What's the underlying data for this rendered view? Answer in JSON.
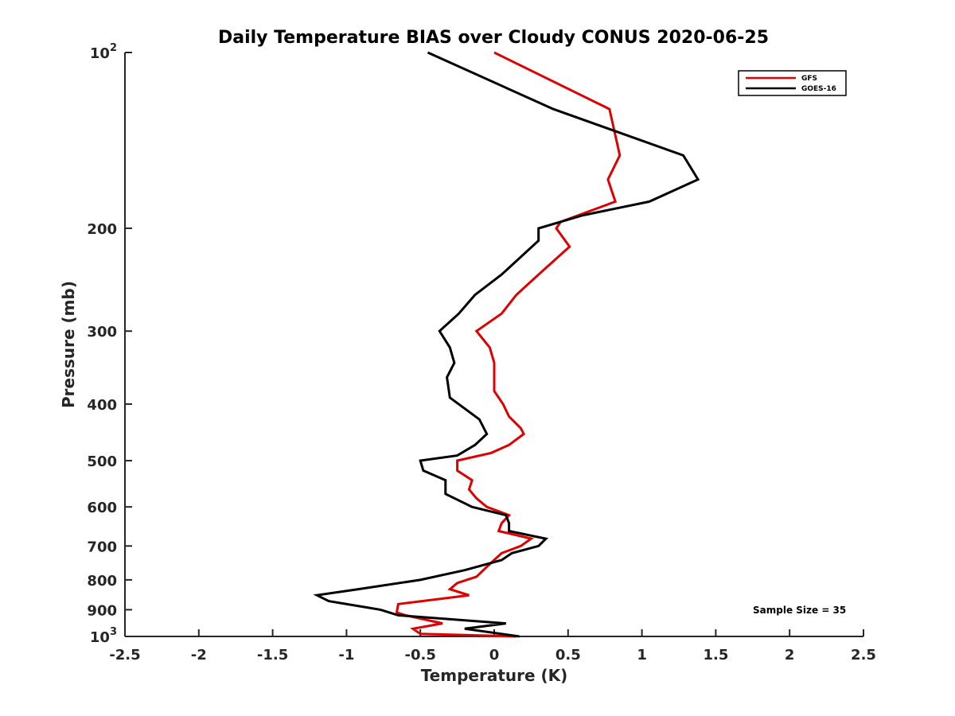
{
  "chart_data": {
    "type": "line",
    "title": "Daily Temperature BIAS over Cloudy CONUS 2020-06-25",
    "xlabel": "Temperature (K)",
    "ylabel": "Pressure (mb)",
    "xlim": [
      -2.5,
      2.5
    ],
    "ylim": [
      100,
      1000
    ],
    "y_scale": "log",
    "y_reversed": true,
    "x_ticks": [
      -2.5,
      -2,
      -1.5,
      -1,
      -0.5,
      0,
      0.5,
      1,
      1.5,
      2,
      2.5
    ],
    "x_tick_labels": [
      "-2.5",
      "-2",
      "-1.5",
      "-1",
      "-0.5",
      "0",
      "0.5",
      "1",
      "1.5",
      "2",
      "2.5"
    ],
    "y_ticks": [
      100,
      200,
      300,
      400,
      500,
      600,
      700,
      800,
      900,
      1000
    ],
    "y_tick_labels": [
      {
        "base": "10",
        "exp": "2"
      },
      {
        "base": "200",
        "exp": ""
      },
      {
        "base": "300",
        "exp": ""
      },
      {
        "base": "400",
        "exp": ""
      },
      {
        "base": "500",
        "exp": ""
      },
      {
        "base": "600",
        "exp": ""
      },
      {
        "base": "700",
        "exp": ""
      },
      {
        "base": "800",
        "exp": ""
      },
      {
        "base": "900",
        "exp": ""
      },
      {
        "base": "10",
        "exp": "3"
      }
    ],
    "grid": false,
    "legend_position": "top-right",
    "annotation": "Sample Size = 35",
    "series": [
      {
        "name": "GFS",
        "color": "#e00000",
        "points": [
          [
            0.0,
            100
          ],
          [
            0.78,
            125
          ],
          [
            0.85,
            150
          ],
          [
            0.77,
            165
          ],
          [
            0.82,
            180
          ],
          [
            0.45,
            195
          ],
          [
            0.42,
            200
          ],
          [
            0.51,
            215
          ],
          [
            0.3,
            240
          ],
          [
            0.15,
            260
          ],
          [
            0.05,
            280
          ],
          [
            -0.12,
            300
          ],
          [
            -0.03,
            320
          ],
          [
            0.0,
            340
          ],
          [
            0.0,
            360
          ],
          [
            0.0,
            380
          ],
          [
            0.06,
            400
          ],
          [
            0.1,
            420
          ],
          [
            0.18,
            440
          ],
          [
            0.2,
            450
          ],
          [
            0.1,
            470
          ],
          [
            -0.02,
            485
          ],
          [
            -0.25,
            500
          ],
          [
            -0.25,
            520
          ],
          [
            -0.15,
            540
          ],
          [
            -0.17,
            560
          ],
          [
            -0.12,
            580
          ],
          [
            -0.05,
            600
          ],
          [
            0.1,
            620
          ],
          [
            0.05,
            640
          ],
          [
            0.03,
            660
          ],
          [
            0.25,
            680
          ],
          [
            0.18,
            700
          ],
          [
            0.05,
            720
          ],
          [
            -0.05,
            760
          ],
          [
            -0.12,
            790
          ],
          [
            -0.25,
            810
          ],
          [
            -0.3,
            830
          ],
          [
            -0.17,
            850
          ],
          [
            -0.65,
            880
          ],
          [
            -0.66,
            910
          ],
          [
            -0.6,
            920
          ],
          [
            -0.35,
            950
          ],
          [
            -0.55,
            970
          ],
          [
            -0.5,
            990
          ],
          [
            0.15,
            1000
          ]
        ]
      },
      {
        "name": "GOES-16",
        "color": "#000000",
        "points": [
          [
            -0.45,
            100
          ],
          [
            0.4,
            125
          ],
          [
            1.28,
            150
          ],
          [
            1.38,
            165
          ],
          [
            1.05,
            180
          ],
          [
            0.6,
            190
          ],
          [
            0.3,
            200
          ],
          [
            0.3,
            210
          ],
          [
            0.05,
            240
          ],
          [
            -0.13,
            260
          ],
          [
            -0.24,
            280
          ],
          [
            -0.37,
            300
          ],
          [
            -0.3,
            320
          ],
          [
            -0.27,
            340
          ],
          [
            -0.32,
            360
          ],
          [
            -0.3,
            390
          ],
          [
            -0.1,
            425
          ],
          [
            -0.05,
            450
          ],
          [
            -0.13,
            470
          ],
          [
            -0.25,
            490
          ],
          [
            -0.5,
            500
          ],
          [
            -0.48,
            520
          ],
          [
            -0.33,
            540
          ],
          [
            -0.33,
            570
          ],
          [
            -0.15,
            600
          ],
          [
            0.08,
            620
          ],
          [
            0.1,
            640
          ],
          [
            0.1,
            660
          ],
          [
            0.35,
            680
          ],
          [
            0.3,
            700
          ],
          [
            0.12,
            720
          ],
          [
            0.05,
            740
          ],
          [
            -0.2,
            770
          ],
          [
            -0.5,
            800
          ],
          [
            -0.92,
            830
          ],
          [
            -1.2,
            850
          ],
          [
            -1.12,
            870
          ],
          [
            -0.77,
            900
          ],
          [
            -0.65,
            920
          ],
          [
            0.08,
            950
          ],
          [
            -0.2,
            970
          ],
          [
            0.17,
            1000
          ]
        ]
      }
    ]
  }
}
